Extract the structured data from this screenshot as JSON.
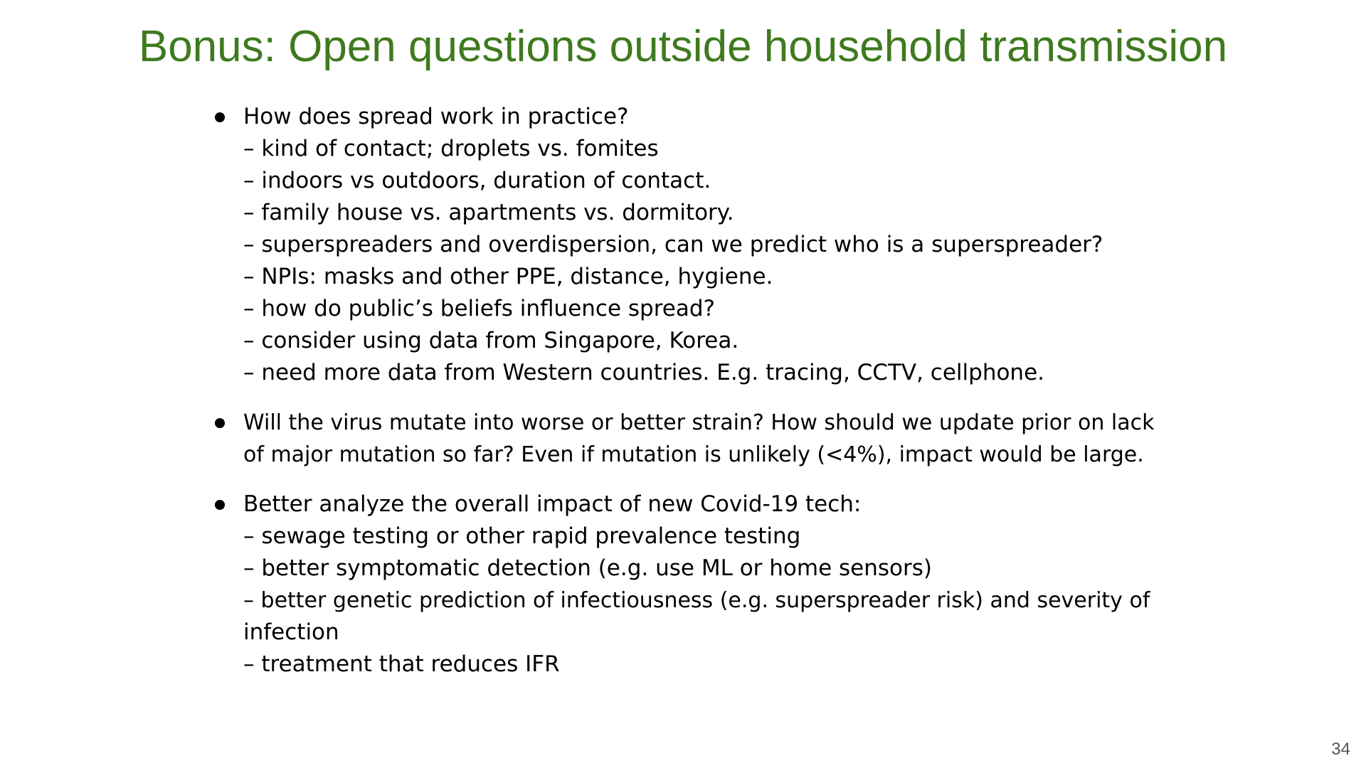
{
  "title": "Bonus: Open questions outside household transmission",
  "page_number": "34",
  "bullets": [
    {
      "lines": [
        "How does spread work in practice?",
        "– kind of contact; droplets vs. fomites",
        "– indoors vs outdoors, duration of contact.",
        "– family house vs. apartments vs. dormitory.",
        "– superspreaders and overdispersion, can we predict who is a superspreader?",
        "– NPIs: masks and other PPE, distance, hygiene.",
        "– how do public’s beliefs influence spread?",
        "– consider using data from Singapore, Korea.",
        "– need more data from Western countries. E.g. tracing, CCTV, cellphone."
      ]
    },
    {
      "lines": [
        "Will the virus mutate into worse or better strain? How should we update prior on lack",
        "of major mutation so far? Even if mutation is unlikely (<4%), impact would be large."
      ]
    },
    {
      "lines": [
        "Better analyze the overall impact of new Covid-19 tech:",
        "– sewage testing or other rapid prevalence testing",
        "– better symptomatic detection (e.g. use ML or home sensors)",
        "– better genetic prediction of infectiousness (e.g. superspreader risk) and severity of",
        "infection",
        "– treatment that reduces IFR"
      ]
    }
  ]
}
